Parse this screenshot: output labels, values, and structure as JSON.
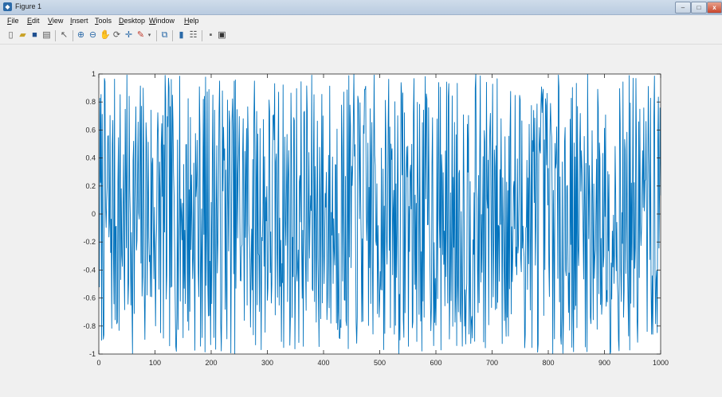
{
  "window": {
    "title": "Figure 1",
    "minimize_glyph": "–",
    "maximize_glyph": "□",
    "close_glyph": "x"
  },
  "menu": [
    "File",
    "Edit",
    "View",
    "Insert",
    "Tools",
    "Desktop",
    "Window",
    "Help"
  ],
  "toolbar": {
    "icons": [
      "new-figure-icon",
      "open-file-icon",
      "save-icon",
      "print-icon",
      "pointer-icon",
      "zoom-in-icon",
      "zoom-out-icon",
      "pan-icon",
      "rotate-3d-icon",
      "data-cursor-icon",
      "brush-icon",
      "link-plot-icon",
      "insert-colorbar-icon",
      "insert-legend-icon",
      "hide-plot-tools-icon",
      "show-plot-tools-icon"
    ]
  },
  "chart_data": {
    "type": "line",
    "title": "",
    "xlabel": "",
    "ylabel": "",
    "xlim": [
      0,
      1000
    ],
    "ylim": [
      -1,
      1
    ],
    "xticks": [
      0,
      100,
      200,
      300,
      400,
      500,
      600,
      700,
      800,
      900,
      1000
    ],
    "yticks": [
      -1,
      -0.8,
      -0.6,
      -0.4,
      -0.2,
      0,
      0.2,
      0.4,
      0.6,
      0.8,
      1
    ],
    "grid": false,
    "series_color": "#0072bd",
    "series": [
      {
        "name": "",
        "generator": "uniform random values in [-1, 1], one per integer x from 1 to 1000",
        "n": 1000,
        "seed": 7
      }
    ]
  }
}
